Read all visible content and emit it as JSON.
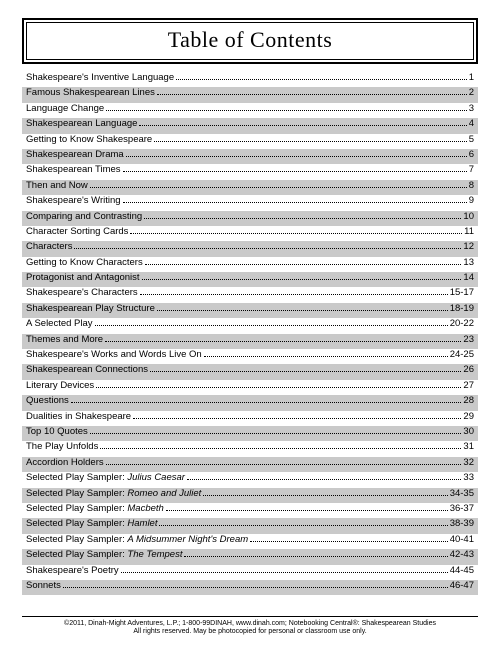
{
  "title": "Table of Contents",
  "entries": [
    {
      "label": "Shakespeare's Inventive Language",
      "page": "1"
    },
    {
      "label": "Famous Shakespearean Lines",
      "page": "2"
    },
    {
      "label": "Language Change",
      "page": "3"
    },
    {
      "label": "Shakespearean Language",
      "page": "4"
    },
    {
      "label": "Getting to Know Shakespeare",
      "page": "5"
    },
    {
      "label": "Shakespearean Drama",
      "page": "6"
    },
    {
      "label": "Shakespearean Times",
      "page": "7"
    },
    {
      "label": "Then and Now",
      "page": "8"
    },
    {
      "label": "Shakespeare's Writing",
      "page": "9"
    },
    {
      "label": "Comparing and Contrasting",
      "page": "10"
    },
    {
      "label": "Character Sorting Cards",
      "page": "11"
    },
    {
      "label": "Characters",
      "page": "12"
    },
    {
      "label": "Getting to Know Characters",
      "page": "13"
    },
    {
      "label": "Protagonist and Antagonist",
      "page": "14"
    },
    {
      "label": "Shakespeare's Characters",
      "page": "15-17"
    },
    {
      "label": "Shakespearean Play Structure",
      "page": "18-19"
    },
    {
      "label": "A Selected Play",
      "page": "20-22"
    },
    {
      "label": "Themes and More",
      "page": "23"
    },
    {
      "label": "Shakespeare's Works and Words Live On",
      "page": "24-25"
    },
    {
      "label": "Shakespearean Connections",
      "page": "26"
    },
    {
      "label": "Literary Devices",
      "page": "27"
    },
    {
      "label": "Questions",
      "page": "28"
    },
    {
      "label": "Dualities in Shakespeare",
      "page": "29"
    },
    {
      "label": "Top 10 Quotes",
      "page": "30"
    },
    {
      "label": "The Play Unfolds",
      "page": "31"
    },
    {
      "label": "Accordion Holders",
      "page": "32"
    },
    {
      "label_prefix": "Selected Play Sampler: ",
      "label_italic": "Julius Caesar",
      "page": "33"
    },
    {
      "label_prefix": "Selected Play Sampler: ",
      "label_italic": "Romeo and Juliet",
      "page": "34-35"
    },
    {
      "label_prefix": "Selected Play Sampler: ",
      "label_italic": "Macbeth",
      "page": "36-37"
    },
    {
      "label_prefix": "Selected Play Sampler: ",
      "label_italic": "Hamlet",
      "page": "38-39"
    },
    {
      "label_prefix": "Selected Play Sampler:  ",
      "label_italic": "A Midsummer Night's Dream",
      "page": "40-41"
    },
    {
      "label_prefix": "Selected Play Sampler: ",
      "label_italic": "The Tempest",
      "page": "42-43"
    },
    {
      "label": "Shakespeare's Poetry",
      "page": "44-45"
    },
    {
      "label": "Sonnets",
      "page": "46-47"
    }
  ],
  "footer_line1": "©2011, Dinah-Might Adventures, L.P.; 1-800-99DINAH, www.dinah.com; Notebooking Central®: Shakespearean Studies",
  "footer_line2": "All rights reserved.  May be photocopied for personal or classroom use only."
}
